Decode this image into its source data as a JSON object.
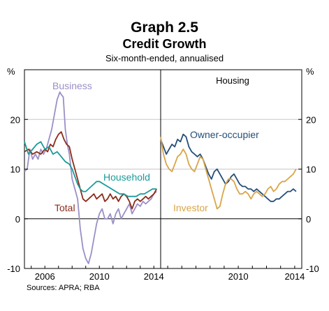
{
  "title": "Graph 2.5",
  "subtitle": "Credit Growth",
  "note": "Six-month-ended, annualised",
  "source": "Sources: APRA; RBA",
  "colors": {
    "Business": "#9b8fc7",
    "Total": "#8b2c1a",
    "Household": "#1a9a9a",
    "Owner-occupier": "#244e7a",
    "Investor": "#d9a548",
    "grid": "#c8c8c8",
    "axis": "#000000"
  },
  "chart_data": [
    {
      "type": "line",
      "panel": "left",
      "title": "",
      "ylabel_left": "%",
      "ylim": [
        -10,
        30
      ],
      "xlim": [
        2004.5,
        2014.5
      ],
      "yticks": [
        "20",
        "10",
        "0",
        "-10"
      ],
      "xticks": [
        "2006",
        "2010",
        "2014"
      ],
      "series": [
        {
          "name": "Business",
          "x": [
            2004.5,
            2004.7,
            2004.9,
            2005.1,
            2005.3,
            2005.5,
            2005.7,
            2005.9,
            2006.1,
            2006.3,
            2006.5,
            2006.7,
            2006.9,
            2007.1,
            2007.2,
            2007.35,
            2007.5,
            2007.65,
            2007.8,
            2008.0,
            2008.2,
            2008.4,
            2008.6,
            2008.8,
            2009.0,
            2009.2,
            2009.4,
            2009.6,
            2009.8,
            2010.0,
            2010.2,
            2010.4,
            2010.6,
            2010.8,
            2011.0,
            2011.2,
            2011.4,
            2011.6,
            2011.8,
            2012.0,
            2012.2,
            2012.4,
            2012.6,
            2012.8,
            2013.0,
            2013.2,
            2013.4,
            2013.6,
            2013.8,
            2014.0,
            2014.2
          ],
          "values": [
            9.5,
            10,
            14,
            12,
            13,
            12,
            14,
            13,
            14,
            16,
            18,
            21,
            24,
            25.5,
            25,
            24.5,
            18,
            15,
            13,
            8,
            6,
            4,
            -2,
            -6,
            -8,
            -9,
            -7,
            -4,
            -1,
            1,
            2,
            0,
            0,
            1,
            -1,
            1,
            2,
            0,
            1,
            2,
            3,
            1,
            2,
            3,
            2.5,
            3.5,
            3,
            3.5,
            4,
            5,
            5.5
          ]
        },
        {
          "name": "Total",
          "x": [
            2004.5,
            2004.8,
            2005.1,
            2005.4,
            2005.7,
            2006.0,
            2006.2,
            2006.4,
            2006.6,
            2006.8,
            2007.0,
            2007.2,
            2007.4,
            2007.6,
            2007.8,
            2008.0,
            2008.2,
            2008.4,
            2008.6,
            2008.8,
            2009.0,
            2009.2,
            2009.4,
            2009.6,
            2009.8,
            2010.0,
            2010.2,
            2010.4,
            2010.6,
            2010.8,
            2011.0,
            2011.2,
            2011.4,
            2011.6,
            2011.8,
            2012.0,
            2012.2,
            2012.4,
            2012.6,
            2012.8,
            2013.0,
            2013.2,
            2013.4,
            2013.6,
            2013.8,
            2014.0,
            2014.2
          ],
          "values": [
            13.5,
            14,
            13,
            13.5,
            13,
            14,
            13.5,
            15,
            14.5,
            16,
            17,
            17.5,
            16,
            15,
            14.5,
            12,
            10,
            8,
            6,
            4,
            3.5,
            4,
            4.5,
            5,
            4,
            4.5,
            5,
            3.5,
            4,
            5,
            4,
            4.5,
            3.5,
            4.5,
            5,
            4.5,
            3.5,
            2,
            3.5,
            4,
            3.5,
            4,
            4.5,
            4,
            4.5,
            5,
            6
          ]
        },
        {
          "name": "Household",
          "x": [
            2004.5,
            2004.8,
            2005.1,
            2005.4,
            2005.7,
            2006.0,
            2006.3,
            2006.6,
            2006.9,
            2007.2,
            2007.5,
            2007.8,
            2008.0,
            2008.2,
            2008.4,
            2008.6,
            2008.8,
            2009.0,
            2009.2,
            2009.4,
            2009.6,
            2009.8,
            2010.0,
            2010.3,
            2010.6,
            2010.9,
            2011.2,
            2011.5,
            2011.8,
            2012.1,
            2012.4,
            2012.7,
            2013.0,
            2013.3,
            2013.6,
            2013.9,
            2014.2
          ],
          "values": [
            15.5,
            13,
            14,
            15,
            15.5,
            14,
            14.5,
            13,
            13.5,
            12.5,
            11.5,
            11,
            10,
            8.5,
            7,
            6,
            5.5,
            5.5,
            6,
            6.5,
            7,
            7.5,
            7.5,
            7,
            6.5,
            6,
            5.5,
            5,
            5,
            4.5,
            4.5,
            4.5,
            5,
            5,
            5.5,
            6,
            6
          ]
        }
      ]
    },
    {
      "type": "line",
      "panel": "right",
      "title": "Housing",
      "ylabel_right": "%",
      "ylim": [
        -10,
        30
      ],
      "xlim": [
        2004.5,
        2014.5
      ],
      "yticks": [
        "20",
        "10",
        "0",
        "-10"
      ],
      "xticks": [
        "2010",
        "2014"
      ],
      "series": [
        {
          "name": "Owner-occupier",
          "x": [
            2004.5,
            2004.7,
            2004.9,
            2005.1,
            2005.3,
            2005.5,
            2005.7,
            2005.9,
            2006.1,
            2006.3,
            2006.5,
            2006.7,
            2006.9,
            2007.1,
            2007.3,
            2007.5,
            2007.7,
            2007.9,
            2008.1,
            2008.3,
            2008.5,
            2008.7,
            2008.9,
            2009.1,
            2009.3,
            2009.5,
            2009.7,
            2009.9,
            2010.1,
            2010.3,
            2010.5,
            2010.7,
            2010.9,
            2011.1,
            2011.3,
            2011.5,
            2011.7,
            2011.9,
            2012.1,
            2012.3,
            2012.5,
            2012.7,
            2012.9,
            2013.1,
            2013.3,
            2013.5,
            2013.7,
            2013.9,
            2014.1
          ],
          "values": [
            16,
            14.5,
            13,
            14,
            15,
            14.5,
            16,
            15.5,
            17,
            16.5,
            14.5,
            13.5,
            13,
            12.5,
            13,
            12,
            10.5,
            9,
            8,
            9.5,
            10,
            9,
            8,
            7,
            7.5,
            8.5,
            9,
            8,
            7,
            6.5,
            6.5,
            6,
            6,
            5.5,
            6,
            5.5,
            5,
            4.5,
            4,
            3.5,
            3.5,
            4,
            4,
            4.5,
            5,
            5.5,
            5.5,
            6,
            5.5
          ]
        },
        {
          "name": "Investor",
          "x": [
            2004.5,
            2004.7,
            2004.9,
            2005.1,
            2005.3,
            2005.5,
            2005.7,
            2005.9,
            2006.1,
            2006.3,
            2006.5,
            2006.7,
            2006.9,
            2007.1,
            2007.3,
            2007.5,
            2007.7,
            2007.9,
            2008.1,
            2008.3,
            2008.5,
            2008.7,
            2008.9,
            2009.1,
            2009.3,
            2009.5,
            2009.7,
            2009.9,
            2010.1,
            2010.3,
            2010.5,
            2010.7,
            2010.9,
            2011.1,
            2011.3,
            2011.5,
            2011.7,
            2011.9,
            2012.1,
            2012.3,
            2012.5,
            2012.7,
            2012.9,
            2013.1,
            2013.3,
            2013.5,
            2013.7,
            2013.9,
            2014.1
          ],
          "values": [
            16.5,
            13,
            11,
            10,
            9.5,
            11,
            12.5,
            13,
            14,
            13,
            11,
            10,
            9.5,
            11,
            12.5,
            12,
            10,
            8,
            6,
            4,
            2,
            2.5,
            5,
            7,
            8,
            8,
            7.5,
            6,
            5,
            5,
            5.5,
            5,
            4,
            5,
            5.5,
            5,
            4.5,
            5,
            6,
            6.5,
            5.5,
            6,
            7,
            7.5,
            7.5,
            8,
            8.5,
            9,
            10
          ]
        }
      ]
    }
  ]
}
